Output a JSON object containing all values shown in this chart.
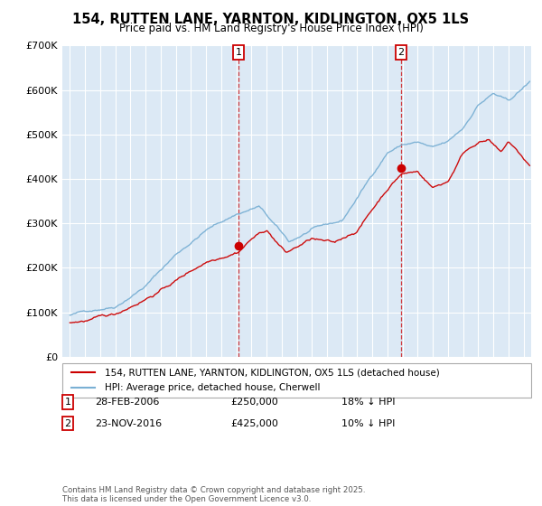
{
  "title": "154, RUTTEN LANE, YARNTON, KIDLINGTON, OX5 1LS",
  "subtitle": "Price paid vs. HM Land Registry's House Price Index (HPI)",
  "bg_color": "#dce9f5",
  "red_color": "#cc0000",
  "blue_color": "#7ab0d4",
  "grid_color": "#ffffff",
  "legend_label_red": "154, RUTTEN LANE, YARNTON, KIDLINGTON, OX5 1LS (detached house)",
  "legend_label_blue": "HPI: Average price, detached house, Cherwell",
  "sale1_date": "28-FEB-2006",
  "sale1_price": "£250,000",
  "sale1_hpi": "18% ↓ HPI",
  "sale1_year": 2006.15,
  "sale1_value": 250000,
  "sale2_date": "23-NOV-2016",
  "sale2_price": "£425,000",
  "sale2_hpi": "10% ↓ HPI",
  "sale2_year": 2016.9,
  "sale2_value": 425000,
  "footnote": "Contains HM Land Registry data © Crown copyright and database right 2025.\nThis data is licensed under the Open Government Licence v3.0.",
  "ylim": [
    0,
    700000
  ],
  "xlim": [
    1994.5,
    2025.5
  ],
  "yticks": [
    0,
    100000,
    200000,
    300000,
    400000,
    500000,
    600000,
    700000
  ],
  "ytick_labels": [
    "£0",
    "£100K",
    "£200K",
    "£300K",
    "£400K",
    "£500K",
    "£600K",
    "£700K"
  ],
  "xticks": [
    1995,
    1996,
    1997,
    1998,
    1999,
    2000,
    2001,
    2002,
    2003,
    2004,
    2005,
    2006,
    2007,
    2008,
    2009,
    2010,
    2011,
    2012,
    2013,
    2014,
    2015,
    2016,
    2017,
    2018,
    2019,
    2020,
    2021,
    2022,
    2023,
    2024,
    2025
  ]
}
